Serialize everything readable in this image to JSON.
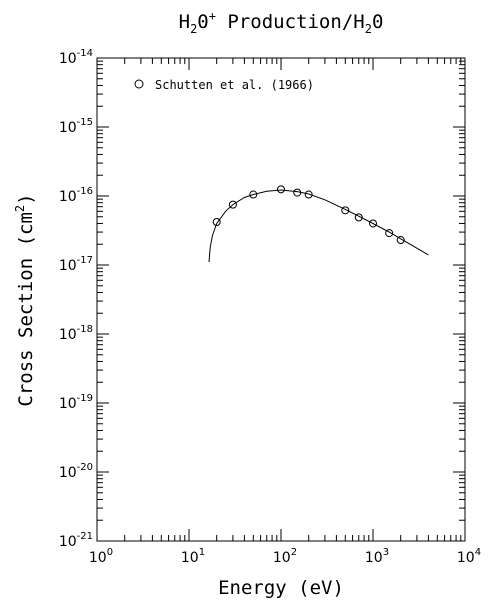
{
  "chart_data": {
    "type": "scatter",
    "title": {
      "pre": "H",
      "sub1": "2",
      "mid": "0",
      "sup": "+",
      "post": " Production/H",
      "sub2": "2",
      "end": "0"
    },
    "xlabel": "Energy (eV)",
    "ylabel_main": "Cross Section (cm",
    "ylabel_sup": "2",
    "ylabel_end": ")",
    "x_scale": "log",
    "y_scale": "log",
    "xlim": [
      1,
      10000
    ],
    "ylim": [
      1e-21,
      1e-14
    ],
    "x_ticks": [
      {
        "base": "10",
        "exp": "0",
        "value": 1
      },
      {
        "base": "10",
        "exp": "1",
        "value": 10
      },
      {
        "base": "10",
        "exp": "2",
        "value": 100
      },
      {
        "base": "10",
        "exp": "3",
        "value": 1000
      },
      {
        "base": "10",
        "exp": "4",
        "value": 10000
      }
    ],
    "y_ticks": [
      {
        "base": "10",
        "exp": "-14",
        "value": 1e-14
      },
      {
        "base": "10",
        "exp": "-15",
        "value": 1e-15
      },
      {
        "base": "10",
        "exp": "-16",
        "value": 1e-16
      },
      {
        "base": "10",
        "exp": "-17",
        "value": 1e-17
      },
      {
        "base": "10",
        "exp": "-18",
        "value": 1e-18
      },
      {
        "base": "10",
        "exp": "-19",
        "value": 1e-19
      },
      {
        "base": "10",
        "exp": "-20",
        "value": 1e-20
      },
      {
        "base": "10",
        "exp": "-21",
        "value": 1e-21
      }
    ],
    "legend": {
      "placement": "top-left",
      "label": "Schutten et al. (1966)",
      "marker": "open-circle"
    },
    "points": [
      {
        "x": 20,
        "y": 4.2e-17
      },
      {
        "x": 30,
        "y": 7.5e-17
      },
      {
        "x": 50,
        "y": 1.05e-16
      },
      {
        "x": 100,
        "y": 1.25e-16
      },
      {
        "x": 150,
        "y": 1.12e-16
      },
      {
        "x": 200,
        "y": 1.05e-16
      },
      {
        "x": 500,
        "y": 6.2e-17
      },
      {
        "x": 700,
        "y": 4.9e-17
      },
      {
        "x": 1000,
        "y": 4e-17
      },
      {
        "x": 1500,
        "y": 2.9e-17
      },
      {
        "x": 2000,
        "y": 2.3e-17
      }
    ],
    "fit_curve": [
      {
        "x": 16.5,
        "y": 1.1e-17
      },
      {
        "x": 17,
        "y": 1.8e-17
      },
      {
        "x": 18,
        "y": 2.7e-17
      },
      {
        "x": 20,
        "y": 4e-17
      },
      {
        "x": 25,
        "y": 6e-17
      },
      {
        "x": 30,
        "y": 7.5e-17
      },
      {
        "x": 40,
        "y": 9.5e-17
      },
      {
        "x": 50,
        "y": 1.05e-16
      },
      {
        "x": 70,
        "y": 1.17e-16
      },
      {
        "x": 100,
        "y": 1.22e-16
      },
      {
        "x": 150,
        "y": 1.16e-16
      },
      {
        "x": 200,
        "y": 1.07e-16
      },
      {
        "x": 300,
        "y": 8.8e-17
      },
      {
        "x": 500,
        "y": 6.4e-17
      },
      {
        "x": 700,
        "y": 5.1e-17
      },
      {
        "x": 1000,
        "y": 4e-17
      },
      {
        "x": 1500,
        "y": 3e-17
      },
      {
        "x": 2000,
        "y": 2.4e-17
      },
      {
        "x": 3000,
        "y": 1.75e-17
      },
      {
        "x": 4000,
        "y": 1.4e-17
      }
    ],
    "grid": false
  }
}
